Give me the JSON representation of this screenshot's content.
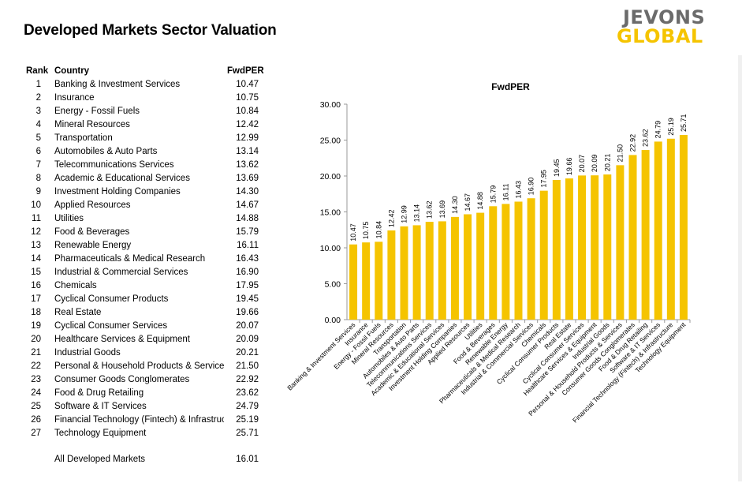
{
  "header": {
    "title": "Developed Markets Sector Valuation",
    "logo_line1": "JEVONS",
    "logo_line2": "GLOBAL"
  },
  "table": {
    "col_rank": "Rank",
    "col_country": "Country",
    "col_pe": "FwdPER",
    "rows": [
      {
        "rank": "1",
        "country": "Banking & Investment Services",
        "pe": "10.47"
      },
      {
        "rank": "2",
        "country": "Insurance",
        "pe": "10.75"
      },
      {
        "rank": "3",
        "country": "Energy - Fossil Fuels",
        "pe": "10.84"
      },
      {
        "rank": "4",
        "country": "Mineral Resources",
        "pe": "12.42"
      },
      {
        "rank": "5",
        "country": "Transportation",
        "pe": "12.99"
      },
      {
        "rank": "6",
        "country": "Automobiles & Auto Parts",
        "pe": "13.14"
      },
      {
        "rank": "7",
        "country": "Telecommunications Services",
        "pe": "13.62"
      },
      {
        "rank": "8",
        "country": "Academic & Educational Services",
        "pe": "13.69"
      },
      {
        "rank": "9",
        "country": "Investment Holding Companies",
        "pe": "14.30"
      },
      {
        "rank": "10",
        "country": "Applied Resources",
        "pe": "14.67"
      },
      {
        "rank": "11",
        "country": "Utilities",
        "pe": "14.88"
      },
      {
        "rank": "12",
        "country": "Food & Beverages",
        "pe": "15.79"
      },
      {
        "rank": "13",
        "country": "Renewable Energy",
        "pe": "16.11"
      },
      {
        "rank": "14",
        "country": "Pharmaceuticals & Medical Research",
        "pe": "16.43"
      },
      {
        "rank": "15",
        "country": "Industrial & Commercial Services",
        "pe": "16.90"
      },
      {
        "rank": "16",
        "country": "Chemicals",
        "pe": "17.95"
      },
      {
        "rank": "17",
        "country": "Cyclical Consumer Products",
        "pe": "19.45"
      },
      {
        "rank": "18",
        "country": "Real Estate",
        "pe": "19.66"
      },
      {
        "rank": "19",
        "country": "Cyclical Consumer Services",
        "pe": "20.07"
      },
      {
        "rank": "20",
        "country": "Healthcare Services & Equipment",
        "pe": "20.09"
      },
      {
        "rank": "21",
        "country": "Industrial Goods",
        "pe": "20.21"
      },
      {
        "rank": "22",
        "country": "Personal & Household Products & Services",
        "pe": "21.50"
      },
      {
        "rank": "23",
        "country": "Consumer Goods Conglomerates",
        "pe": "22.92"
      },
      {
        "rank": "24",
        "country": "Food & Drug Retailing",
        "pe": "23.62"
      },
      {
        "rank": "25",
        "country": "Software & IT Services",
        "pe": "24.79"
      },
      {
        "rank": "26",
        "country": "Financial Technology (Fintech) & Infrastructur",
        "pe": "25.19"
      },
      {
        "rank": "27",
        "country": "Technology Equipment",
        "pe": "25.71"
      }
    ],
    "total_label": "All Developed Markets",
    "total_pe": "16.01"
  },
  "chart_data": {
    "type": "bar",
    "title": "FwdPER",
    "xlabel": "",
    "ylabel": "",
    "ylim": [
      0,
      30
    ],
    "yticks": [
      "0.00",
      "5.00",
      "10.00",
      "15.00",
      "20.00",
      "25.00",
      "30.00"
    ],
    "grid": false,
    "bar_color": "#f5c400",
    "categories": [
      "Banking & Investment Services",
      "Insurance",
      "Energy - Fossil Fuels",
      "Mineral Resources",
      "Transportation",
      "Automobiles & Auto Parts",
      "Telecommunications Services",
      "Academic & Educational Services",
      "Investment Holding Companies",
      "Applied Resources",
      "Utilities",
      "Food & Beverages",
      "Renewable Energy",
      "Pharmaceuticals & Medical Research",
      "Industrial & Commercial Services",
      "Chemicals",
      "Cyclical Consumer Products",
      "Real Estate",
      "Cyclical Consumer Services",
      "Healthcare Services & Equipment",
      "Industrial Goods",
      "Personal & Household Products & Services",
      "Consumer Goods Conglomerates",
      "Food & Drug Retailing",
      "Software & IT Services",
      "Financial Technology (Fintech) & Infrastructure",
      "Technology Equipment"
    ],
    "values": [
      10.47,
      10.75,
      10.84,
      12.42,
      12.99,
      13.14,
      13.62,
      13.69,
      14.3,
      14.67,
      14.88,
      15.79,
      16.11,
      16.43,
      16.9,
      17.95,
      19.45,
      19.66,
      20.07,
      20.09,
      20.21,
      21.5,
      22.92,
      23.62,
      24.79,
      25.19,
      25.71
    ],
    "value_labels": [
      "10.47",
      "10.75",
      "10.84",
      "12.42",
      "12.99",
      "13.14",
      "13.62",
      "13.69",
      "14.30",
      "14.67",
      "14.88",
      "15.79",
      "16.11",
      "16.43",
      "16.90",
      "17.95",
      "19.45",
      "19.66",
      "20.07",
      "20.09",
      "20.21",
      "21.50",
      "22.92",
      "23.62",
      "24.79",
      "25.19",
      "25.71"
    ]
  }
}
